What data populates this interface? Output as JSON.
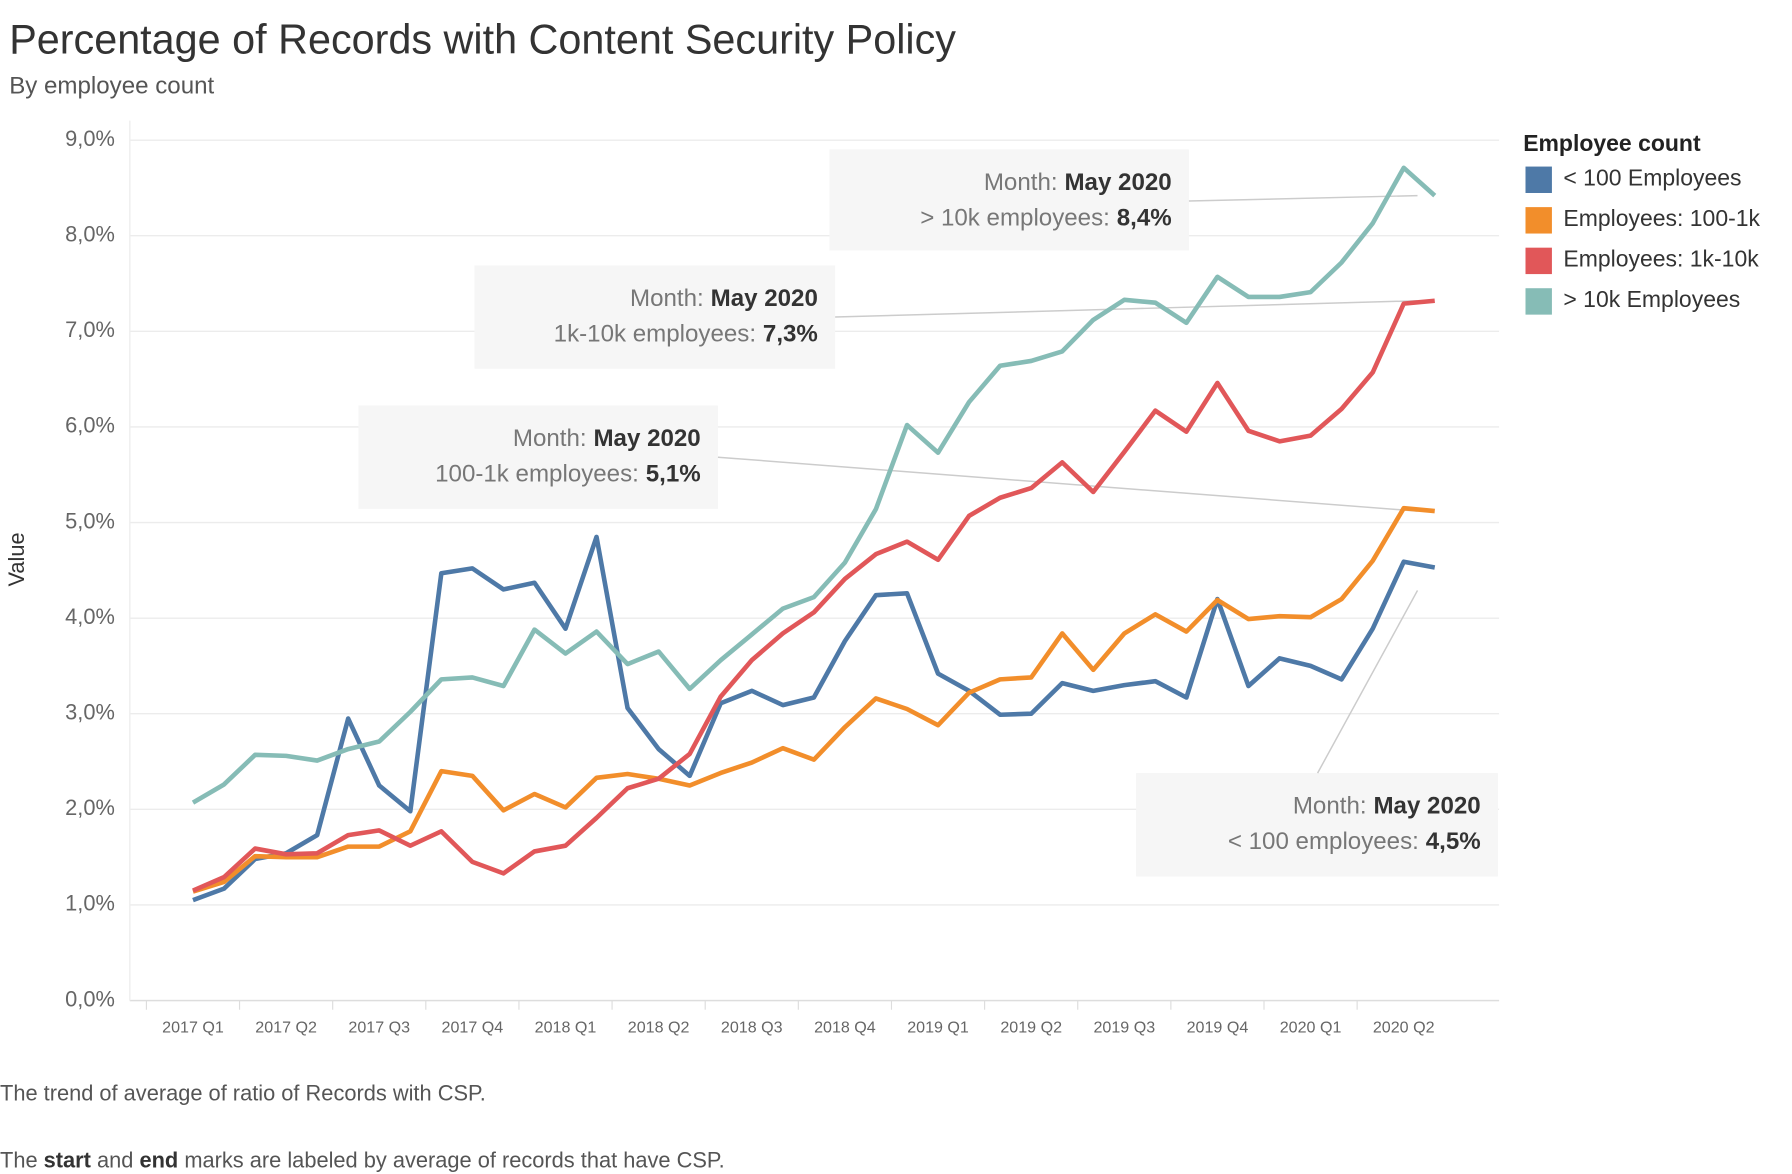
{
  "chart_data": {
    "type": "line",
    "title": "Percentage of Records with Content Security Policy",
    "subtitle": "By employee count",
    "y_label": "Value",
    "legend_title": "Employee count",
    "legend_position": "right",
    "grid": true,
    "categories": [
      "2017 Q1",
      null,
      null,
      "2017 Q2",
      null,
      null,
      "2017 Q3",
      null,
      null,
      "2017 Q4",
      null,
      null,
      "2018 Q1",
      null,
      null,
      "2018 Q2",
      null,
      null,
      "2018 Q3",
      null,
      null,
      "2018 Q4",
      null,
      null,
      "2019 Q1",
      null,
      null,
      "2019 Q2",
      null,
      null,
      "2019 Q3",
      null,
      null,
      "2019 Q4",
      null,
      null,
      "2020 Q1",
      null,
      null,
      "2020 Q2",
      null
    ],
    "ylim": [
      0,
      9
    ],
    "yticks": [
      {
        "value": 0,
        "label": "0,0%"
      },
      {
        "value": 1,
        "label": "1,0%"
      },
      {
        "value": 2,
        "label": "2,0%"
      },
      {
        "value": 3,
        "label": "3,0%"
      },
      {
        "value": 4,
        "label": "4,0%"
      },
      {
        "value": 5,
        "label": "5,0%"
      },
      {
        "value": 6,
        "label": "6,0%"
      },
      {
        "value": 7,
        "label": "7,0%"
      },
      {
        "value": 8,
        "label": "8,0%"
      },
      {
        "value": 9,
        "label": "9,0%"
      }
    ],
    "series": [
      {
        "name": "< 100 Employees",
        "color": "#4e79a7",
        "values": [
          1.05,
          1.17,
          1.48,
          1.54,
          1.73,
          2.95,
          2.25,
          1.98,
          4.47,
          4.52,
          4.3,
          4.37,
          3.89,
          4.85,
          3.06,
          2.63,
          2.35,
          3.11,
          3.24,
          3.09,
          3.17,
          3.76,
          4.24,
          4.26,
          3.42,
          3.24,
          2.99,
          3.0,
          3.32,
          3.24,
          3.3,
          3.34,
          3.17,
          4.2,
          3.29,
          3.58,
          3.5,
          3.36,
          3.89,
          4.59,
          4.53
        ]
      },
      {
        "name": "Employees: 100-1k",
        "color": "#f28e2b",
        "values": [
          1.14,
          1.24,
          1.51,
          1.5,
          1.5,
          1.61,
          1.61,
          1.77,
          2.4,
          2.35,
          1.99,
          2.16,
          2.02,
          2.33,
          2.37,
          2.32,
          2.25,
          2.38,
          2.49,
          2.64,
          2.52,
          2.86,
          3.16,
          3.05,
          2.88,
          3.22,
          3.36,
          3.38,
          3.84,
          3.46,
          3.84,
          4.04,
          3.86,
          4.19,
          3.99,
          4.02,
          4.01,
          4.2,
          4.6,
          5.15,
          5.12
        ]
      },
      {
        "name": "Employees: 1k-10k",
        "color": "#e15759",
        "values": [
          1.15,
          1.29,
          1.59,
          1.53,
          1.54,
          1.73,
          1.78,
          1.62,
          1.77,
          1.45,
          1.33,
          1.56,
          1.62,
          1.91,
          2.22,
          2.32,
          2.58,
          3.18,
          3.56,
          3.84,
          4.06,
          4.41,
          4.67,
          4.8,
          4.61,
          5.07,
          5.26,
          5.36,
          5.63,
          5.32,
          5.74,
          6.17,
          5.95,
          6.46,
          5.96,
          5.85,
          5.91,
          6.19,
          6.57,
          7.29,
          7.32
        ]
      },
      {
        "name": "> 10k Employees",
        "color": "#86bcb6",
        "values": [
          2.07,
          2.26,
          2.57,
          2.56,
          2.51,
          2.63,
          2.71,
          3.02,
          3.36,
          3.38,
          3.29,
          3.88,
          3.63,
          3.86,
          3.52,
          3.65,
          3.26,
          3.56,
          3.83,
          4.1,
          4.22,
          4.58,
          5.14,
          6.02,
          5.73,
          6.26,
          6.64,
          6.69,
          6.79,
          7.12,
          7.33,
          7.3,
          7.09,
          7.57,
          7.36,
          7.36,
          7.41,
          7.72,
          8.13,
          8.71,
          8.42
        ]
      }
    ],
    "annotations": [
      {
        "label": "Month:",
        "month": "May 2020",
        "series_label": "> 10k employees:",
        "value_label": "8,4%"
      },
      {
        "label": "Month:",
        "month": "May 2020",
        "series_label": "1k-10k employees:",
        "value_label": "7,3%"
      },
      {
        "label": "Month:",
        "month": "May 2020",
        "series_label": "100-1k employees:",
        "value_label": "5,1%"
      },
      {
        "label": "Month:",
        "month": "May 2020",
        "series_label": "< 100 employees:",
        "value_label": "4,5%"
      }
    ],
    "footnotes": [
      [
        "The trend of average of ratio of Records with CSP."
      ],
      [
        "The",
        "start",
        "and",
        "end",
        "marks are labeled by average of records that have CSP."
      ]
    ]
  }
}
